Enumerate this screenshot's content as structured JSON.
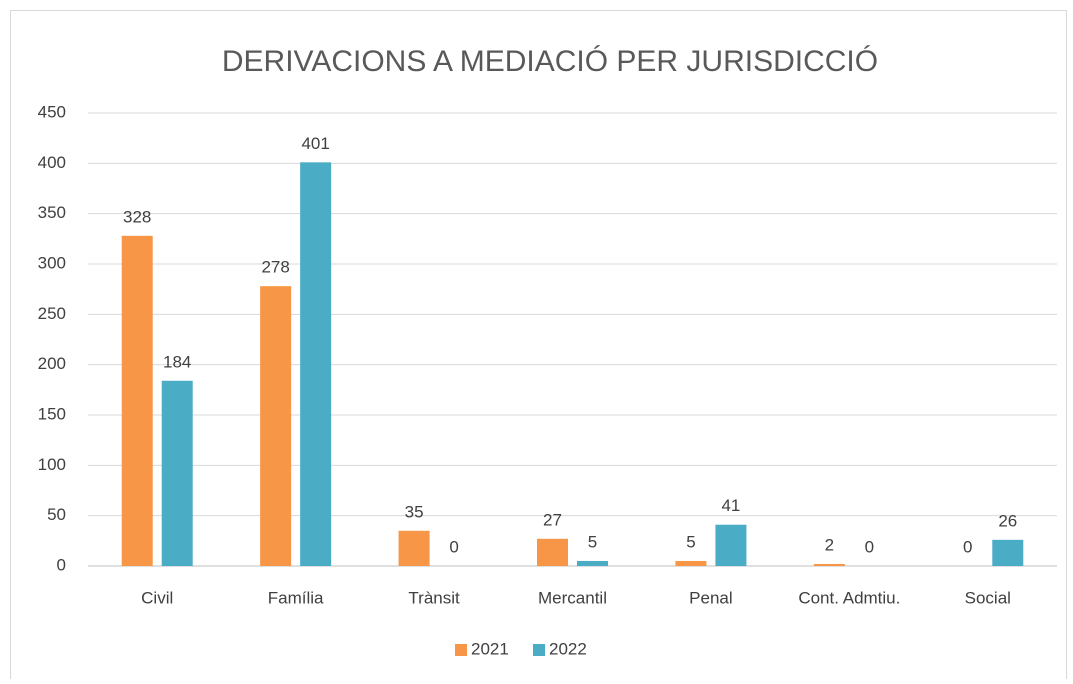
{
  "chart_data": {
    "type": "bar",
    "title": "DERIVACIONS A MEDIACIÓ PER JURISDICCIÓ",
    "categories": [
      "Civil",
      "Família",
      "Trànsit",
      "Mercantil",
      "Penal",
      "Cont. Admtiu.",
      "Social"
    ],
    "series": [
      {
        "name": "2021",
        "color": "#f79646",
        "values": [
          328,
          278,
          35,
          27,
          5,
          2,
          0
        ]
      },
      {
        "name": "2022",
        "color": "#4bacc6",
        "values": [
          184,
          401,
          0,
          5,
          41,
          0,
          26
        ]
      }
    ],
    "ylim": [
      0,
      450
    ],
    "yticks": [
      0,
      50,
      100,
      150,
      200,
      250,
      300,
      350,
      400,
      450
    ],
    "grid": true,
    "legend": "bottom"
  }
}
